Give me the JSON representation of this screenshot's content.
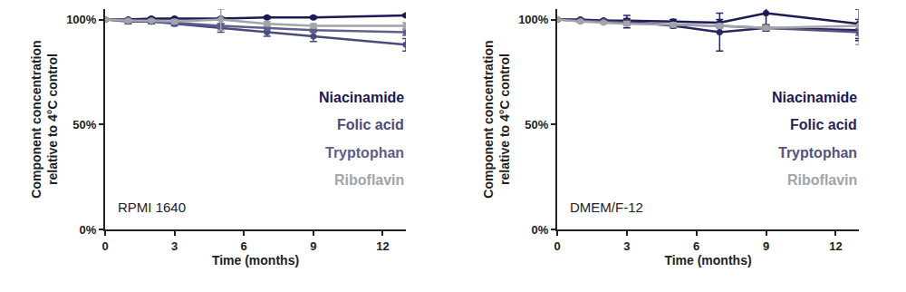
{
  "chart_data": [
    {
      "type": "line",
      "annotations": [
        "RPMI 1640"
      ],
      "x_label": "Time (months)",
      "y_label": "Component concentration\nrelative to 4°C control",
      "x": [
        0,
        1,
        2,
        3,
        5,
        7,
        9,
        13
      ],
      "xlim": [
        0,
        13
      ],
      "xticks": [
        0,
        3,
        6,
        9,
        12
      ],
      "ylim": [
        0,
        105
      ],
      "yticks": [
        {
          "value": 0,
          "label": "0%"
        },
        {
          "value": 50,
          "label": "50%"
        },
        {
          "value": 100,
          "label": "100%"
        }
      ],
      "grid": false,
      "legend": "right",
      "marker": "circle",
      "series": [
        {
          "name": "Niacinamide",
          "color": "#1c1a55",
          "values": [
            100,
            100,
            100.5,
            100.5,
            100.5,
            101,
            101,
            102
          ],
          "error": [
            0.5,
            0.5,
            0.5,
            0.5,
            0.5,
            0.5,
            0.5,
            0.5
          ]
        },
        {
          "name": "Folic acid",
          "color": "#4a4a7e",
          "values": [
            100,
            99,
            99,
            98,
            96,
            94,
            92,
            88
          ],
          "error": [
            0.5,
            1,
            1,
            1,
            2,
            2,
            2.5,
            3
          ]
        },
        {
          "name": "Tryptophan",
          "color": "#5e5e8c",
          "values": [
            100,
            99.5,
            99,
            98.5,
            97,
            96,
            95,
            94
          ],
          "error": [
            0.5,
            0.5,
            0.5,
            1,
            1,
            1,
            1,
            1.5
          ]
        },
        {
          "name": "Riboflavin",
          "color": "#a3a3ab",
          "values": [
            100,
            99.5,
            99.5,
            99,
            100,
            98,
            97,
            97
          ],
          "error": [
            0.5,
            0.5,
            0.5,
            1,
            5,
            1,
            1,
            1.5
          ]
        }
      ]
    },
    {
      "type": "line",
      "annotations": [
        "DMEM/F-12"
      ],
      "x_label": "Time (months)",
      "y_label": "Component concentration\nrelative to 4°C control",
      "x": [
        0,
        1,
        2,
        3,
        5,
        7,
        9,
        13
      ],
      "xlim": [
        0,
        13
      ],
      "xticks": [
        0,
        3,
        6,
        9,
        12
      ],
      "ylim": [
        0,
        105
      ],
      "yticks": [
        {
          "value": 0,
          "label": "0%"
        },
        {
          "value": 50,
          "label": "50%"
        },
        {
          "value": 100,
          "label": "100%"
        }
      ],
      "grid": false,
      "legend": "right",
      "marker": "circle",
      "series": [
        {
          "name": "Niacinamide",
          "color": "#1c1a55",
          "values": [
            100,
            100,
            99.5,
            99.5,
            99,
            98.5,
            103,
            98
          ],
          "error": [
            0.5,
            0.5,
            0.5,
            1,
            1,
            1.5,
            6,
            7
          ]
        },
        {
          "name": "Folic acid",
          "color": "#27265f",
          "values": [
            100,
            99.5,
            99.5,
            99,
            97,
            94,
            96,
            95
          ],
          "error": [
            0.5,
            0.5,
            0.5,
            3,
            1,
            9,
            1.5,
            5
          ]
        },
        {
          "name": "Tryptophan",
          "color": "#55547f",
          "values": [
            100,
            99.5,
            99,
            98.5,
            97.5,
            97,
            96,
            94
          ],
          "error": [
            0.5,
            0.5,
            0.5,
            1,
            1,
            1,
            1,
            1.5
          ]
        },
        {
          "name": "Riboflavin",
          "color": "#a3a3ab",
          "values": [
            100,
            99,
            98.5,
            98,
            97.5,
            97,
            96,
            97
          ],
          "error": [
            0.5,
            0.5,
            0.5,
            1,
            1,
            1,
            1,
            9
          ]
        }
      ]
    }
  ]
}
